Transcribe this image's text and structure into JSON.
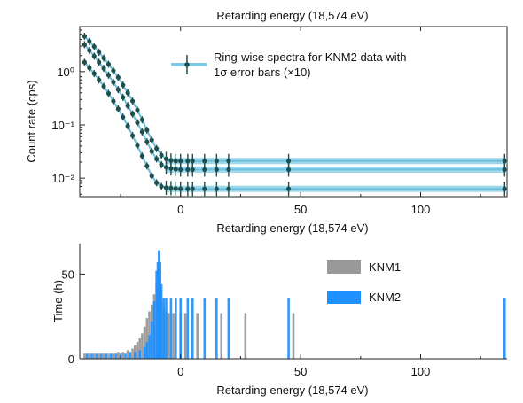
{
  "chart_data": [
    {
      "type": "scatter",
      "title": "",
      "top_axis_label": "Retarding energy (18,574 eV)",
      "xlabel": "Retarding energy (18,574 eV)",
      "ylabel": "Count rate (cps)",
      "x_scale": "linear",
      "y_scale": "log",
      "xlim": [
        -42,
        136
      ],
      "ylim": [
        0.0045,
        7
      ],
      "x_ticks": [
        0,
        50,
        100
      ],
      "x_tick_labels": [
        "0",
        "50",
        "100"
      ],
      "y_ticks": [
        0.01,
        0.1,
        1
      ],
      "y_tick_labels": [
        "10⁻²",
        "10⁻¹",
        "10⁰"
      ],
      "grid": false,
      "legend_position": "top-right",
      "legend_label_main": "Ring-wise spectra for KNM2 data with",
      "legend_label_sub": "1σ error bars (×10)",
      "colors": {
        "points": "#1f4e4e",
        "band": "#7ec8e3",
        "fit": "#6cc0e0"
      },
      "x": [
        -40,
        -38,
        -36,
        -34,
        -32,
        -30,
        -28,
        -26,
        -24,
        -22,
        -20,
        -18,
        -16,
        -14,
        -12,
        -10,
        -8,
        -6,
        -4,
        -2,
        0,
        3,
        5,
        10,
        15,
        20,
        45,
        135
      ],
      "series": [
        {
          "name": "",
          "values": [
            4.6,
            3.7,
            2.95,
            2.3,
            1.8,
            1.38,
            1.04,
            0.78,
            0.56,
            0.4,
            0.28,
            0.19,
            0.125,
            0.08,
            0.052,
            0.036,
            0.027,
            0.023,
            0.0215,
            0.021,
            0.021,
            0.021,
            0.021,
            0.021,
            0.021,
            0.021,
            0.021,
            0.021
          ]
        },
        {
          "name": "",
          "values": [
            3.2,
            2.5,
            1.95,
            1.5,
            1.15,
            0.86,
            0.63,
            0.46,
            0.33,
            0.23,
            0.16,
            0.11,
            0.074,
            0.048,
            0.032,
            0.023,
            0.018,
            0.016,
            0.0152,
            0.0148,
            0.0145,
            0.0145,
            0.0145,
            0.0145,
            0.0145,
            0.0145,
            0.0145,
            0.0145
          ]
        },
        {
          "name": "",
          "values": [
            1.5,
            1.18,
            0.92,
            0.7,
            0.53,
            0.39,
            0.28,
            0.2,
            0.14,
            0.095,
            0.063,
            0.041,
            0.026,
            0.017,
            0.011,
            0.0082,
            0.007,
            0.0066,
            0.0065,
            0.0064,
            0.0063,
            0.0063,
            0.0063,
            0.0063,
            0.0063,
            0.0063,
            0.0063,
            0.0063
          ]
        }
      ]
    },
    {
      "type": "bar",
      "title": "",
      "xlabel": "Retarding energy (18,574 eV)",
      "ylabel": "Time (h)",
      "xlim": [
        -42,
        136
      ],
      "ylim": [
        0,
        68
      ],
      "x_ticks": [
        0,
        50,
        100
      ],
      "x_tick_labels": [
        "0",
        "50",
        "100"
      ],
      "y_ticks": [
        0,
        50
      ],
      "y_tick_labels": [
        "0",
        "50"
      ],
      "grid": false,
      "legend_position": "top-right",
      "series": [
        {
          "name": "KNM1",
          "color": "#999999",
          "x": [
            -40,
            -38,
            -36,
            -34,
            -32,
            -30,
            -28,
            -26,
            -24,
            -22,
            -20,
            -19,
            -18,
            -17,
            -16,
            -15,
            -14,
            -13,
            -12,
            -11,
            -10,
            -9,
            -8,
            -7,
            -6,
            -5,
            -3,
            0,
            2,
            7,
            17,
            27,
            47
          ],
          "values": [
            3,
            3,
            3,
            3,
            3,
            3,
            3,
            4,
            4,
            5,
            6,
            8,
            10,
            12,
            15,
            19,
            24,
            28,
            32,
            38,
            44,
            40,
            34,
            30,
            28,
            27,
            27,
            27,
            27,
            27,
            27,
            27,
            27
          ]
        },
        {
          "name": "KNM2",
          "color": "#1e90ff",
          "x": [
            -39,
            -37,
            -35,
            -33,
            -31,
            -29,
            -27,
            -25,
            -23,
            -21,
            -19,
            -17,
            -15,
            -14,
            -13,
            -12,
            -11,
            -10,
            -9.5,
            -9,
            -8.5,
            -8,
            -7,
            -6,
            -4,
            -2,
            0,
            3,
            5,
            10,
            15,
            20,
            45,
            135
          ],
          "values": [
            3,
            3,
            3,
            3,
            3,
            3,
            3,
            3,
            3,
            4,
            4,
            5,
            7,
            10,
            14,
            22,
            34,
            52,
            57,
            64,
            57,
            44,
            36,
            36,
            36,
            36,
            36,
            36,
            36,
            36,
            36,
            36,
            36,
            36
          ]
        }
      ]
    }
  ]
}
